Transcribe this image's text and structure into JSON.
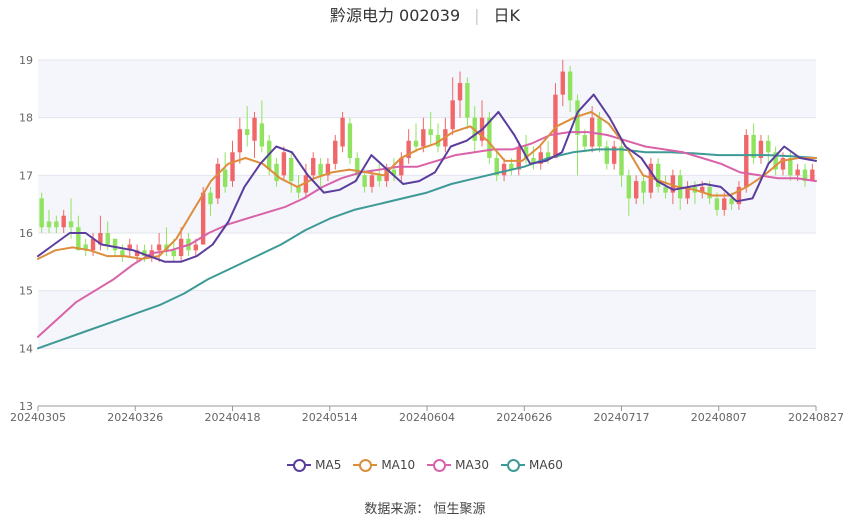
{
  "title": {
    "stock": "黔源电力 002039",
    "period": "日K"
  },
  "colors": {
    "up": "#F0676A",
    "down": "#8FE35F",
    "ma5": "#5B3D9E",
    "ma10": "#DD8E3C",
    "ma30": "#D962A9",
    "ma60": "#3E9A96",
    "band": "#F4F6FB",
    "grid": "#E3E6EE"
  },
  "legend": [
    {
      "key": "ma5",
      "label": "MA5"
    },
    {
      "key": "ma10",
      "label": "MA10"
    },
    {
      "key": "ma30",
      "label": "MA30"
    },
    {
      "key": "ma60",
      "label": "MA60"
    }
  ],
  "source_text": "数据来源： 恒生聚源",
  "chart_data": {
    "type": "candlestick",
    "x_labels": [
      "20240305",
      "20240326",
      "20240418",
      "20240514",
      "20240604",
      "20240626",
      "20240717",
      "20240807",
      "20240827"
    ],
    "ylim": [
      13,
      19
    ],
    "y_ticks": [
      13,
      14,
      15,
      16,
      17,
      18,
      19
    ],
    "grid": true,
    "legend_position": "bottom",
    "candles": [
      [
        16.6,
        16.1,
        16.7,
        16.0
      ],
      [
        16.2,
        16.1,
        16.4,
        16.0
      ],
      [
        16.2,
        16.1,
        16.3,
        16.0
      ],
      [
        16.1,
        16.3,
        16.4,
        16.0
      ],
      [
        16.2,
        16.1,
        16.6,
        15.9
      ],
      [
        16.1,
        15.7,
        16.3,
        15.7
      ],
      [
        15.8,
        15.7,
        15.9,
        15.6
      ],
      [
        15.7,
        15.9,
        16.0,
        15.6
      ],
      [
        15.8,
        16.0,
        16.3,
        15.7
      ],
      [
        16.0,
        15.8,
        16.2,
        15.7
      ],
      [
        15.9,
        15.7,
        15.9,
        15.6
      ],
      [
        15.7,
        15.6,
        15.8,
        15.5
      ],
      [
        15.7,
        15.8,
        15.9,
        15.6
      ],
      [
        15.6,
        15.7,
        15.8,
        15.5
      ],
      [
        15.7,
        15.6,
        15.8,
        15.5
      ],
      [
        15.6,
        15.7,
        15.8,
        15.5
      ],
      [
        15.7,
        15.8,
        16.0,
        15.5
      ],
      [
        15.8,
        15.7,
        16.1,
        15.6
      ],
      [
        15.7,
        15.6,
        15.9,
        15.5
      ],
      [
        15.6,
        15.9,
        16.1,
        15.5
      ],
      [
        15.9,
        15.7,
        16.0,
        15.6
      ],
      [
        15.7,
        15.8,
        15.9,
        15.6
      ],
      [
        15.8,
        16.7,
        16.8,
        15.8
      ],
      [
        16.7,
        16.5,
        16.8,
        16.3
      ],
      [
        16.6,
        17.2,
        17.3,
        16.5
      ],
      [
        17.1,
        16.8,
        17.4,
        16.7
      ],
      [
        16.9,
        17.4,
        17.6,
        16.8
      ],
      [
        17.4,
        17.8,
        18.0,
        17.2
      ],
      [
        17.8,
        17.7,
        18.2,
        17.5
      ],
      [
        17.6,
        18.0,
        18.1,
        17.3
      ],
      [
        17.9,
        17.5,
        18.3,
        17.4
      ],
      [
        17.6,
        17.1,
        17.7,
        17.0
      ],
      [
        17.2,
        16.9,
        17.3,
        16.8
      ],
      [
        17.0,
        17.4,
        17.5,
        16.9
      ],
      [
        17.3,
        16.9,
        17.4,
        16.7
      ],
      [
        16.8,
        16.7,
        17.0,
        16.6
      ],
      [
        16.7,
        17.0,
        17.2,
        16.6
      ],
      [
        17.0,
        17.3,
        17.4,
        16.9
      ],
      [
        17.2,
        17.0,
        17.3,
        16.8
      ],
      [
        17.0,
        17.2,
        17.3,
        16.9
      ],
      [
        17.2,
        17.6,
        17.7,
        17.1
      ],
      [
        17.5,
        18.0,
        18.1,
        17.4
      ],
      [
        17.9,
        17.3,
        18.0,
        17.2
      ],
      [
        17.3,
        17.0,
        17.4,
        16.9
      ],
      [
        17.0,
        16.8,
        17.1,
        16.7
      ],
      [
        16.8,
        17.0,
        17.1,
        16.7
      ],
      [
        17.0,
        16.9,
        17.2,
        16.8
      ],
      [
        16.9,
        17.1,
        17.2,
        16.8
      ],
      [
        17.1,
        17.0,
        17.3,
        16.9
      ],
      [
        17.0,
        17.3,
        17.4,
        16.9
      ],
      [
        17.3,
        17.6,
        17.8,
        17.2
      ],
      [
        17.6,
        17.5,
        17.9,
        17.4
      ],
      [
        17.5,
        17.8,
        18.0,
        17.4
      ],
      [
        17.8,
        17.7,
        18.1,
        17.5
      ],
      [
        17.7,
        17.5,
        17.9,
        17.4
      ],
      [
        17.5,
        17.8,
        18.0,
        17.4
      ],
      [
        17.8,
        18.3,
        18.7,
        17.7
      ],
      [
        18.3,
        18.6,
        18.8,
        18.0
      ],
      [
        18.6,
        18.0,
        18.7,
        17.8
      ],
      [
        18.0,
        17.6,
        18.2,
        17.4
      ],
      [
        17.6,
        18.0,
        18.3,
        17.5
      ],
      [
        18.0,
        17.3,
        18.1,
        17.2
      ],
      [
        17.3,
        17.0,
        17.4,
        16.9
      ],
      [
        17.0,
        17.2,
        17.3,
        16.9
      ],
      [
        17.2,
        17.1,
        17.3,
        17.0
      ],
      [
        17.1,
        17.5,
        17.6,
        17.0
      ],
      [
        17.5,
        17.3,
        17.7,
        17.2
      ],
      [
        17.3,
        17.2,
        17.5,
        17.1
      ],
      [
        17.2,
        17.4,
        17.5,
        17.1
      ],
      [
        17.4,
        17.3,
        17.6,
        17.2
      ],
      [
        17.3,
        18.4,
        18.6,
        17.3
      ],
      [
        18.4,
        18.8,
        19.0,
        18.2
      ],
      [
        18.8,
        18.3,
        18.9,
        18.1
      ],
      [
        18.3,
        17.7,
        18.4,
        17.0
      ],
      [
        17.7,
        17.5,
        17.8,
        17.4
      ],
      [
        17.5,
        18.0,
        18.2,
        17.4
      ],
      [
        18.0,
        17.5,
        18.1,
        17.4
      ],
      [
        17.5,
        17.2,
        17.6,
        17.1
      ],
      [
        17.2,
        17.5,
        17.6,
        17.1
      ],
      [
        17.5,
        17.0,
        17.6,
        16.8
      ],
      [
        17.0,
        16.6,
        17.1,
        16.3
      ],
      [
        16.6,
        16.9,
        17.0,
        16.5
      ],
      [
        16.9,
        16.7,
        17.0,
        16.5
      ],
      [
        16.7,
        17.2,
        17.3,
        16.6
      ],
      [
        17.2,
        16.8,
        17.3,
        16.7
      ],
      [
        16.8,
        16.7,
        17.0,
        16.6
      ],
      [
        16.7,
        17.0,
        17.1,
        16.5
      ],
      [
        17.0,
        16.6,
        17.1,
        16.4
      ],
      [
        16.6,
        16.8,
        16.9,
        16.5
      ],
      [
        16.8,
        16.7,
        16.9,
        16.5
      ],
      [
        16.7,
        16.8,
        16.9,
        16.6
      ],
      [
        16.8,
        16.6,
        16.9,
        16.5
      ],
      [
        16.6,
        16.4,
        16.7,
        16.3
      ],
      [
        16.4,
        16.6,
        16.7,
        16.3
      ],
      [
        16.6,
        16.5,
        16.7,
        16.4
      ],
      [
        16.5,
        16.8,
        16.9,
        16.4
      ],
      [
        16.8,
        17.7,
        17.8,
        16.7
      ],
      [
        17.7,
        17.3,
        17.9,
        17.2
      ],
      [
        17.3,
        17.6,
        17.7,
        17.2
      ],
      [
        17.6,
        17.4,
        17.7,
        17.2
      ],
      [
        17.4,
        17.1,
        17.5,
        17.0
      ],
      [
        17.1,
        17.3,
        17.4,
        17.0
      ],
      [
        17.3,
        17.0,
        17.4,
        16.9
      ],
      [
        17.0,
        17.1,
        17.2,
        16.9
      ],
      [
        17.1,
        16.9,
        17.2,
        16.8
      ],
      [
        16.9,
        17.1,
        17.2,
        16.9
      ]
    ],
    "ma5": [
      15.6,
      15.8,
      16.0,
      16.0,
      15.8,
      15.75,
      15.7,
      15.6,
      15.5,
      15.5,
      15.6,
      15.8,
      16.2,
      16.8,
      17.2,
      17.5,
      17.4,
      17.0,
      16.7,
      16.75,
      16.9,
      17.35,
      17.1,
      16.85,
      16.9,
      17.05,
      17.5,
      17.6,
      17.8,
      18.1,
      17.7,
      17.2,
      17.25,
      17.4,
      18.1,
      18.4,
      18.0,
      17.5,
      17.3,
      16.9,
      16.75,
      16.8,
      16.85,
      16.8,
      16.55,
      16.6,
      17.2,
      17.5,
      17.3,
      17.25
    ],
    "ma10": [
      15.55,
      15.7,
      15.75,
      15.7,
      15.6,
      15.6,
      15.55,
      15.6,
      15.9,
      16.4,
      16.9,
      17.2,
      17.3,
      17.2,
      16.95,
      16.8,
      16.95,
      17.05,
      17.1,
      17.05,
      17.0,
      17.3,
      17.45,
      17.55,
      17.75,
      17.85,
      17.6,
      17.25,
      17.25,
      17.5,
      17.85,
      18.0,
      18.1,
      17.9,
      17.5,
      17.0,
      16.9,
      16.8,
      16.75,
      16.65,
      16.65,
      16.8,
      17.0,
      17.25,
      17.3,
      17.3
    ],
    "ma30": [
      14.2,
      14.5,
      14.8,
      15.0,
      15.2,
      15.45,
      15.65,
      15.7,
      15.8,
      16.0,
      16.15,
      16.25,
      16.35,
      16.45,
      16.6,
      16.8,
      16.95,
      17.05,
      17.1,
      17.15,
      17.15,
      17.25,
      17.35,
      17.4,
      17.45,
      17.45,
      17.55,
      17.7,
      17.75,
      17.75,
      17.7,
      17.6,
      17.5,
      17.45,
      17.4,
      17.3,
      17.2,
      17.05,
      17.0,
      16.95,
      16.95,
      16.9
    ],
    "ma60": [
      14.0,
      14.15,
      14.3,
      14.45,
      14.6,
      14.75,
      14.95,
      15.2,
      15.4,
      15.6,
      15.8,
      16.05,
      16.25,
      16.4,
      16.5,
      16.6,
      16.7,
      16.85,
      16.95,
      17.05,
      17.15,
      17.3,
      17.4,
      17.45,
      17.45,
      17.4,
      17.4,
      17.38,
      17.35,
      17.35,
      17.35,
      17.33,
      17.3
    ]
  }
}
